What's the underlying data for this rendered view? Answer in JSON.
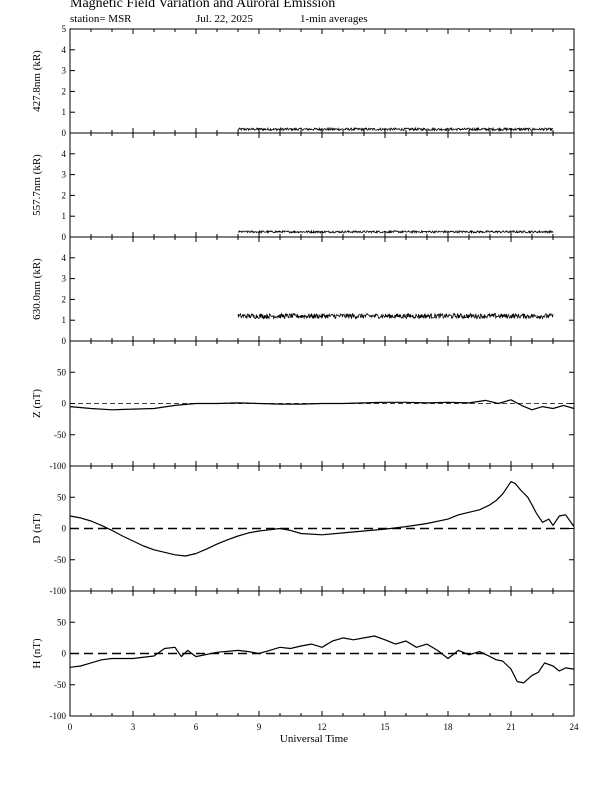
{
  "header": {
    "title": "Magnetic Field Variation and Auroral Emission",
    "station": "station= MSR",
    "date": "Jul.  22,  2025",
    "averaging": "1-min averages"
  },
  "chart_data": {
    "type": "line",
    "xlabel": "Universal Time",
    "xlim": [
      0,
      24
    ],
    "xticks": [
      "0",
      "3",
      "6",
      "9",
      "12",
      "15",
      "18",
      "21",
      "24"
    ],
    "panels": [
      {
        "ylabel": "427.8nm (kR)",
        "ylim": [
          0,
          5
        ],
        "yticks": [
          "0",
          "1",
          "2",
          "3",
          "4",
          "5"
        ],
        "zero_line": "none",
        "series": {
          "x": [
            8,
            23
          ],
          "y": [
            0.18,
            0.18
          ],
          "noise": 0.06
        }
      },
      {
        "ylabel": "557.7nm (kR)",
        "ylim": [
          0,
          5
        ],
        "yticks": [
          "0",
          "1",
          "2",
          "3",
          "4"
        ],
        "zero_line": "none",
        "series": {
          "x": [
            8,
            23
          ],
          "y": [
            0.25,
            0.25
          ],
          "noise": 0.05
        }
      },
      {
        "ylabel": "630.0nm (kR)",
        "ylim": [
          0,
          5
        ],
        "yticks": [
          "0",
          "1",
          "2",
          "3",
          "4"
        ],
        "zero_line": "none",
        "series": {
          "x": [
            8,
            23
          ],
          "y": [
            1.2,
            1.2
          ],
          "noise": 0.12
        }
      },
      {
        "ylabel": "Z (nT)",
        "ylim": [
          -100,
          100
        ],
        "yticks": [
          "-100",
          "-50",
          "0",
          "50"
        ],
        "zero_line": "thin",
        "series": {
          "x": [
            0,
            1,
            2,
            3,
            4,
            5,
            6,
            7,
            8,
            9,
            10,
            11,
            12,
            13,
            14,
            15,
            16,
            17,
            18,
            19,
            19.8,
            20.4,
            21,
            21.5,
            22,
            22.5,
            23,
            23.5,
            24
          ],
          "y": [
            -5,
            -8,
            -10,
            -9,
            -8,
            -3,
            0,
            0,
            1,
            0,
            -1,
            -1,
            0,
            0,
            1,
            2,
            2,
            1,
            2,
            1,
            5,
            0,
            6,
            -3,
            -10,
            -5,
            -8,
            -3,
            -8
          ]
        }
      },
      {
        "ylabel": "D (nT)",
        "ylim": [
          -100,
          100
        ],
        "yticks": [
          "-100",
          "-50",
          "0",
          "50"
        ],
        "zero_line": "thick",
        "series": {
          "x": [
            0,
            0.5,
            1,
            1.5,
            2,
            2.5,
            3,
            3.5,
            4,
            4.5,
            5,
            5.5,
            6,
            6.5,
            7,
            7.5,
            8,
            8.5,
            9,
            9.5,
            10,
            10.5,
            11,
            12,
            13,
            14,
            15,
            16,
            17,
            18,
            18.5,
            19,
            19.5,
            20,
            20.3,
            20.6,
            21,
            21.2,
            21.5,
            21.8,
            22,
            22.2,
            22.5,
            22.8,
            23,
            23.3,
            23.6,
            24
          ],
          "y": [
            20,
            17,
            12,
            5,
            -3,
            -12,
            -20,
            -28,
            -34,
            -38,
            -42,
            -44,
            -40,
            -33,
            -25,
            -18,
            -12,
            -7,
            -4,
            -2,
            0,
            -3,
            -8,
            -10,
            -7,
            -4,
            -1,
            3,
            8,
            15,
            22,
            26,
            30,
            38,
            45,
            55,
            75,
            72,
            60,
            50,
            38,
            25,
            10,
            15,
            5,
            20,
            22,
            3
          ]
        }
      },
      {
        "ylabel": "H (nT)",
        "ylim": [
          -100,
          100
        ],
        "yticks": [
          "-100",
          "-50",
          "0",
          "50"
        ],
        "zero_line": "thick",
        "series": {
          "x": [
            0,
            0.5,
            1,
            1.5,
            2,
            3,
            4,
            4.5,
            5,
            5.3,
            5.6,
            6,
            7,
            8,
            8.5,
            9,
            9.5,
            10,
            10.5,
            11,
            11.5,
            12,
            12.5,
            13,
            13.5,
            14,
            14.5,
            15,
            15.5,
            16,
            16.5,
            17,
            17.5,
            18,
            18.5,
            19,
            19.5,
            20,
            20.3,
            20.6,
            21,
            21.3,
            21.6,
            22,
            22.3,
            22.6,
            23,
            23.3,
            23.6,
            24
          ],
          "y": [
            -22,
            -20,
            -15,
            -10,
            -8,
            -8,
            -4,
            8,
            10,
            -5,
            5,
            -5,
            2,
            5,
            3,
            0,
            5,
            10,
            8,
            12,
            15,
            10,
            20,
            25,
            22,
            25,
            28,
            22,
            15,
            20,
            10,
            15,
            5,
            -8,
            5,
            -2,
            3,
            -5,
            -10,
            -12,
            -25,
            -45,
            -47,
            -35,
            -30,
            -15,
            -20,
            -28,
            -23,
            -25
          ]
        }
      }
    ]
  }
}
